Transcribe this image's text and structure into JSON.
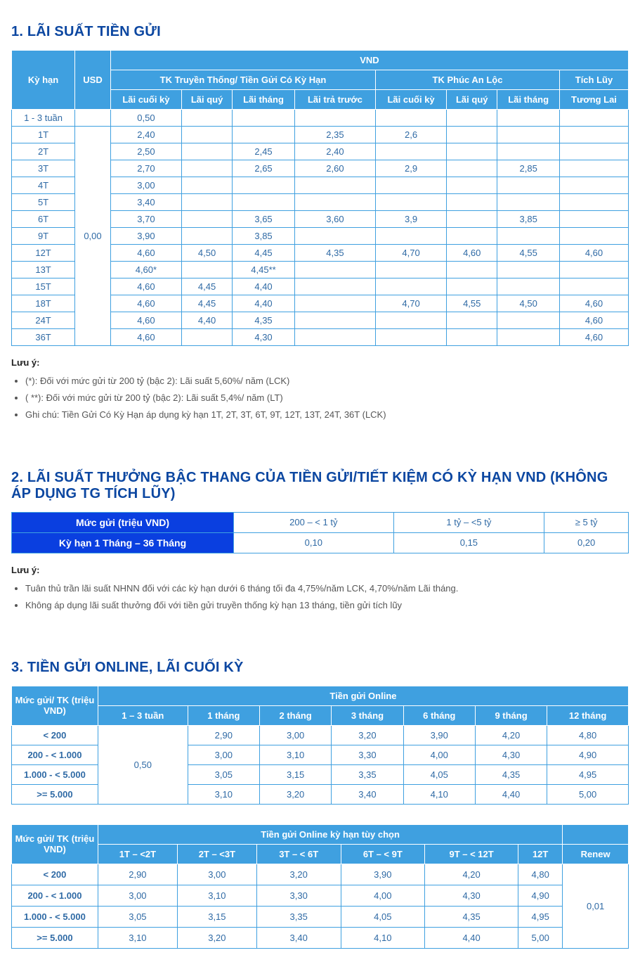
{
  "colors": {
    "heading": "#0c47a1",
    "header_bg_light": "#3fa0e0",
    "header_bg_dark": "#0a3fe0",
    "cell_text": "#2f6aa5",
    "border": "#3fa0e0"
  },
  "section1": {
    "title": "1. LÃI SUẤT TIỀN GỬI",
    "headers": {
      "ky_han": "Kỳ hạn",
      "usd": "USD",
      "vnd": "VND",
      "tk_truyen_thong": "TK Truyền Thống/ Tiền Gửi Có Kỳ Hạn",
      "tk_phuc_an_loc": "TK Phúc An Lộc",
      "tich_luy": "Tích Lũy",
      "lai_cuoi_ky": "Lãi cuối kỳ",
      "lai_quy": "Lãi quý",
      "lai_thang": "Lãi tháng",
      "lai_tra_truoc": "Lãi trả trước",
      "pal_lai_cuoi_ky": "Lãi cuối kỳ",
      "pal_lai_quy": "Lãi quý",
      "pal_lai_thang": "Lãi tháng",
      "tuong_lai": "Tương Lai"
    },
    "usd_merged": "0,00",
    "rows": [
      {
        "term": "1 - 3 tuần",
        "lck": "0,50",
        "lq": "",
        "lt": "",
        "ltt": "",
        "p_lck": "",
        "p_lq": "",
        "p_lt": "",
        "tl": ""
      },
      {
        "term": "1T",
        "lck": "2,40",
        "lq": "",
        "lt": "",
        "ltt": "2,35",
        "p_lck": "2,6",
        "p_lq": "",
        "p_lt": "",
        "tl": ""
      },
      {
        "term": "2T",
        "lck": "2,50",
        "lq": "",
        "lt": "2,45",
        "ltt": "2,40",
        "p_lck": "",
        "p_lq": "",
        "p_lt": "",
        "tl": ""
      },
      {
        "term": "3T",
        "lck": "2,70",
        "lq": "",
        "lt": "2,65",
        "ltt": "2,60",
        "p_lck": "2,9",
        "p_lq": "",
        "p_lt": "2,85",
        "tl": ""
      },
      {
        "term": "4T",
        "lck": "3,00",
        "lq": "",
        "lt": "",
        "ltt": "",
        "p_lck": "",
        "p_lq": "",
        "p_lt": "",
        "tl": ""
      },
      {
        "term": "5T",
        "lck": "3,40",
        "lq": "",
        "lt": "",
        "ltt": "",
        "p_lck": "",
        "p_lq": "",
        "p_lt": "",
        "tl": ""
      },
      {
        "term": "6T",
        "lck": "3,70",
        "lq": "",
        "lt": "3,65",
        "ltt": "3,60",
        "p_lck": "3,9",
        "p_lq": "",
        "p_lt": "3,85",
        "tl": ""
      },
      {
        "term": "9T",
        "lck": "3,90",
        "lq": "",
        "lt": "3,85",
        "ltt": "",
        "p_lck": "",
        "p_lq": "",
        "p_lt": "",
        "tl": ""
      },
      {
        "term": "12T",
        "lck": "4,60",
        "lq": "4,50",
        "lt": "4,45",
        "ltt": "4,35",
        "p_lck": "4,70",
        "p_lq": "4,60",
        "p_lt": "4,55",
        "tl": "4,60"
      },
      {
        "term": "13T",
        "lck": "4,60*",
        "lq": "",
        "lt": "4,45**",
        "ltt": "",
        "p_lck": "",
        "p_lq": "",
        "p_lt": "",
        "tl": ""
      },
      {
        "term": "15T",
        "lck": "4,60",
        "lq": "4,45",
        "lt": "4,40",
        "ltt": "",
        "p_lck": "",
        "p_lq": "",
        "p_lt": "",
        "tl": ""
      },
      {
        "term": "18T",
        "lck": "4,60",
        "lq": "4,45",
        "lt": "4,40",
        "ltt": "",
        "p_lck": "4,70",
        "p_lq": "4,55",
        "p_lt": "4,50",
        "tl": "4,60"
      },
      {
        "term": "24T",
        "lck": "4,60",
        "lq": "4,40",
        "lt": "4,35",
        "ltt": "",
        "p_lck": "",
        "p_lq": "",
        "p_lt": "",
        "tl": "4,60"
      },
      {
        "term": "36T",
        "lck": "4,60",
        "lq": "",
        "lt": "4,30",
        "ltt": "",
        "p_lck": "",
        "p_lq": "",
        "p_lt": "",
        "tl": "4,60"
      }
    ],
    "notes_label": "Lưu ý:",
    "notes": [
      "(*): Đối với mức gửi từ 200 tỷ (bậc 2): Lãi suất 5,60%/ năm (LCK)",
      "( **): Đối với mức gửi từ 200 tỷ (bậc 2): Lãi suất 5,4%/ năm (LT)",
      "Ghi chú: Tiền Gửi Có Kỳ Hạn áp dụng kỳ hạn 1T, 2T, 3T, 6T, 9T, 12T, 13T, 24T, 36T (LCK)"
    ]
  },
  "section2": {
    "title": "2. LÃI SUẤT THƯỞNG BẬC THANG CỦA TIỀN GỬI/TIẾT KIỆM CÓ KỲ HẠN VND (KHÔNG ÁP DỤNG TG TÍCH LŨY)",
    "row1_label": "Mức gửi (triệu VND)",
    "row1_cols": [
      "200 – < 1 tỷ",
      "1 tỷ – <5 tỷ",
      "≥ 5 tỷ"
    ],
    "row2_label": "Kỳ hạn 1 Tháng – 36 Tháng",
    "row2_vals": [
      "0,10",
      "0,15",
      "0,20"
    ],
    "notes_label": "Lưu ý:",
    "notes": [
      "Tuân thủ trần lãi suất NHNN đối với các kỳ hạn dưới 6 tháng tối đa 4,75%/năm LCK, 4,70%/năm Lãi tháng.",
      "Không áp dụng lãi suất thưởng đối với tiền gửi truyền thống kỳ hạn 13 tháng, tiền gửi tích lũy"
    ]
  },
  "section3": {
    "title": "3. TIỀN GỬI ONLINE, LÃI CUỐI KỲ",
    "table_a": {
      "rowhead": "Mức gửi/ TK (triệu VND)",
      "group": "Tiền gửi Online",
      "cols": [
        "1 – 3 tuần",
        "1 tháng",
        "2 tháng",
        "3 tháng",
        "6 tháng",
        "9 tháng",
        "12 tháng"
      ],
      "merged_col0": "0,50",
      "rows": [
        {
          "label": "< 200",
          "v": [
            "2,90",
            "3,00",
            "3,20",
            "3,90",
            "4,20",
            "4,80"
          ]
        },
        {
          "label": "200 - < 1.000",
          "v": [
            "3,00",
            "3,10",
            "3,30",
            "4,00",
            "4,30",
            "4,90"
          ]
        },
        {
          "label": "1.000 - < 5.000",
          "v": [
            "3,05",
            "3,15",
            "3,35",
            "4,05",
            "4,35",
            "4,95"
          ]
        },
        {
          "label": ">= 5.000",
          "v": [
            "3,10",
            "3,20",
            "3,40",
            "4,10",
            "4,40",
            "5,00"
          ]
        }
      ]
    },
    "table_b": {
      "rowhead": "Mức gửi/ TK (triệu VND)",
      "group": "Tiền gửi Online kỳ hạn tùy chọn",
      "cols": [
        "1T – <2T",
        "2T – <3T",
        "3T – < 6T",
        "6T – < 9T",
        "9T – < 12T",
        "12T",
        "Renew"
      ],
      "merged_renew": "0,01",
      "rows": [
        {
          "label": "< 200",
          "v": [
            "2,90",
            "3,00",
            "3,20",
            "3,90",
            "4,20",
            "4,80"
          ]
        },
        {
          "label": "200 - < 1.000",
          "v": [
            "3,00",
            "3,10",
            "3,30",
            "4,00",
            "4,30",
            "4,90"
          ]
        },
        {
          "label": "1.000 - < 5.000",
          "v": [
            "3,05",
            "3,15",
            "3,35",
            "4,05",
            "4,35",
            "4,95"
          ]
        },
        {
          "label": ">= 5.000",
          "v": [
            "3,10",
            "3,20",
            "3,40",
            "4,10",
            "4,40",
            "5,00"
          ]
        }
      ]
    }
  }
}
